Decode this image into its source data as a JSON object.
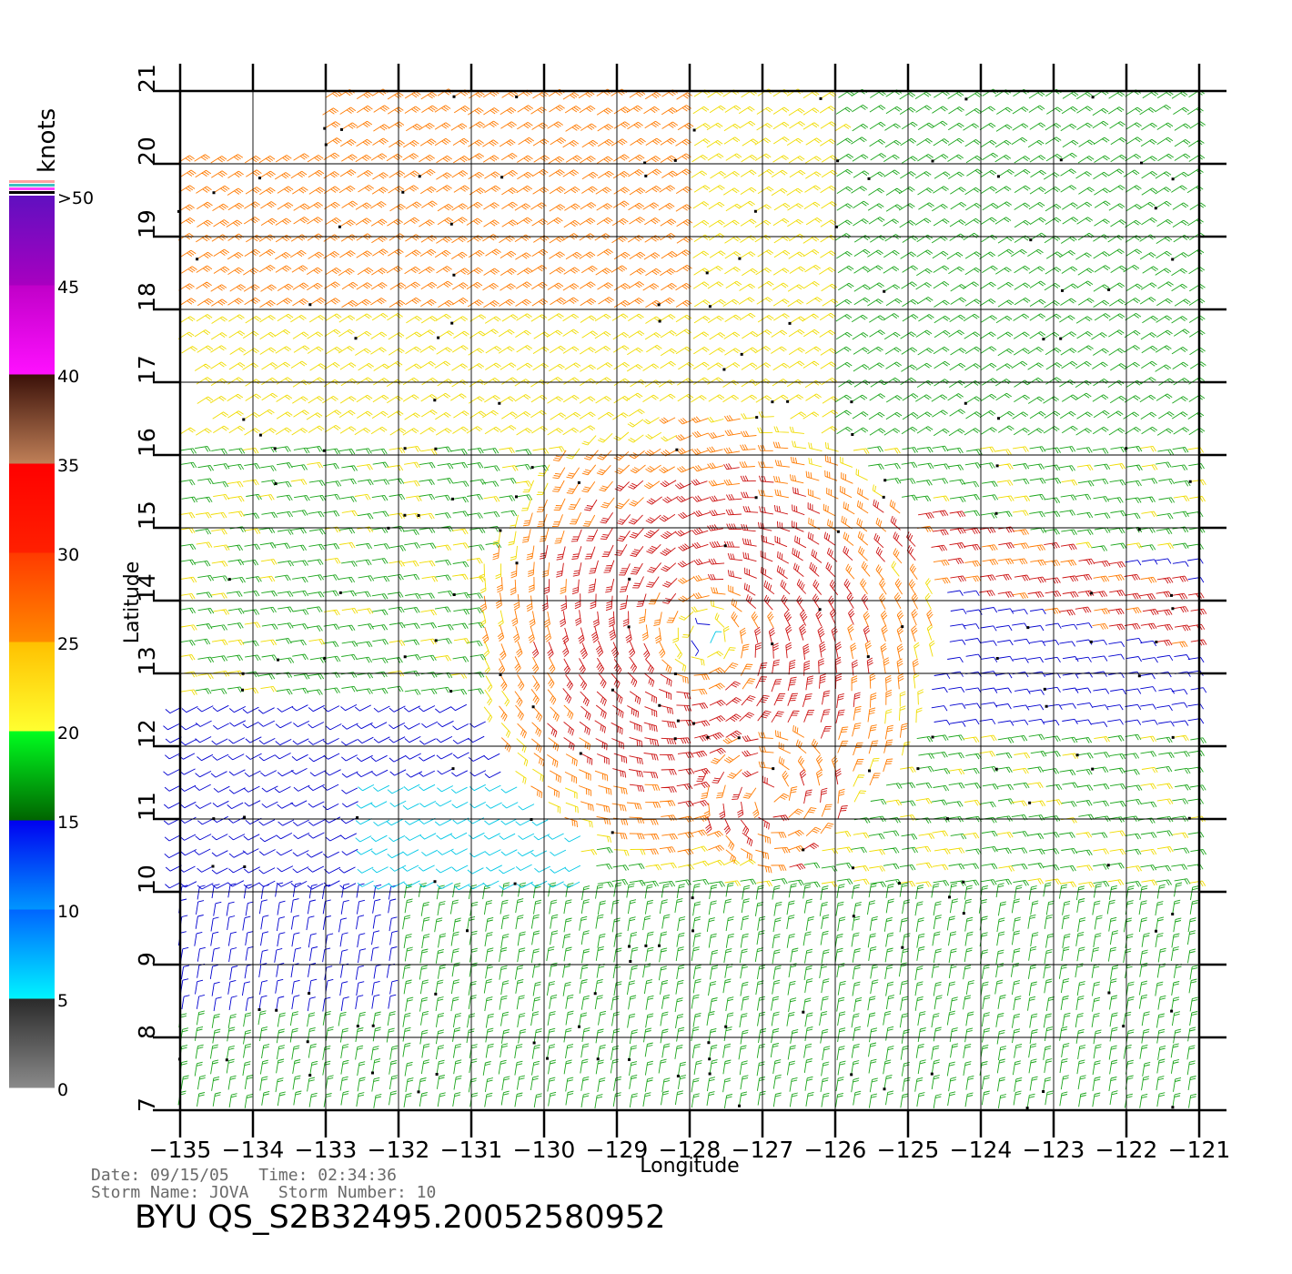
{
  "map": {
    "units_label": "knots",
    "xlabel": "Longitude",
    "ylabel": "Latitude",
    "lon_ticks": [
      -135,
      -134,
      -133,
      -132,
      -131,
      -130,
      -129,
      -128,
      -127,
      -126,
      -125,
      -124,
      -123,
      -122,
      -121
    ],
    "lat_ticks": [
      7,
      8,
      9,
      10,
      11,
      12,
      13,
      14,
      15,
      16,
      17,
      18,
      19,
      20,
      21
    ],
    "lon_range": [
      -135,
      -121
    ],
    "lat_range": [
      7,
      21
    ],
    "colorbar": {
      "labels": [
        "0",
        "5",
        "10",
        "15",
        "20",
        "25",
        "30",
        "35",
        "40",
        "45",
        ">50"
      ],
      "segments": [
        {
          "from": 0,
          "to": 5,
          "colors": [
            "#8a8a8a",
            "#2a2a2a"
          ]
        },
        {
          "from": 5,
          "to": 10,
          "colors": [
            "#00f4ff",
            "#0064ff"
          ]
        },
        {
          "from": 10,
          "to": 15,
          "colors": [
            "#0096ff",
            "#0000f0"
          ]
        },
        {
          "from": 15,
          "to": 20,
          "colors": [
            "#006400",
            "#00ff20"
          ]
        },
        {
          "from": 20,
          "to": 25,
          "colors": [
            "#ffff30",
            "#ffc000"
          ]
        },
        {
          "from": 25,
          "to": 30,
          "colors": [
            "#ff8a00",
            "#ff3a00"
          ]
        },
        {
          "from": 30,
          "to": 35,
          "colors": [
            "#ff2000",
            "#ff0000"
          ]
        },
        {
          "from": 35,
          "to": 40,
          "colors": [
            "#c08058",
            "#3a1008"
          ]
        },
        {
          "from": 40,
          "to": 45,
          "colors": [
            "#ff10ff",
            "#c000c8"
          ]
        },
        {
          "from": 45,
          "to": 50,
          "colors": [
            "#a800c0",
            "#6010c0"
          ]
        }
      ],
      "cap_colors": [
        "#ffa0a0",
        "#40c0c0",
        "#ff40ff",
        "#000000"
      ]
    },
    "wind_colors": {
      "calm": "#555555",
      "light": "#0000d0",
      "cyan": "#00c8e6",
      "moderate": "#1aa51a",
      "fresh": "#f0dc00",
      "strong": "#ff7a00",
      "gale": "#cc1010",
      "storm": "#b000b0"
    },
    "storm_center": {
      "lon": -127.8,
      "lat": 13.5
    },
    "secondary_center": {
      "lon": -126.9,
      "lat": 11.3
    }
  },
  "footer": {
    "date_line": "Date: 09/15/05   Time: 02:34:36",
    "storm_line": "Storm Name: JOVA   Storm Number: 10",
    "title": "BYU QS_S2B32495.20052580952"
  }
}
